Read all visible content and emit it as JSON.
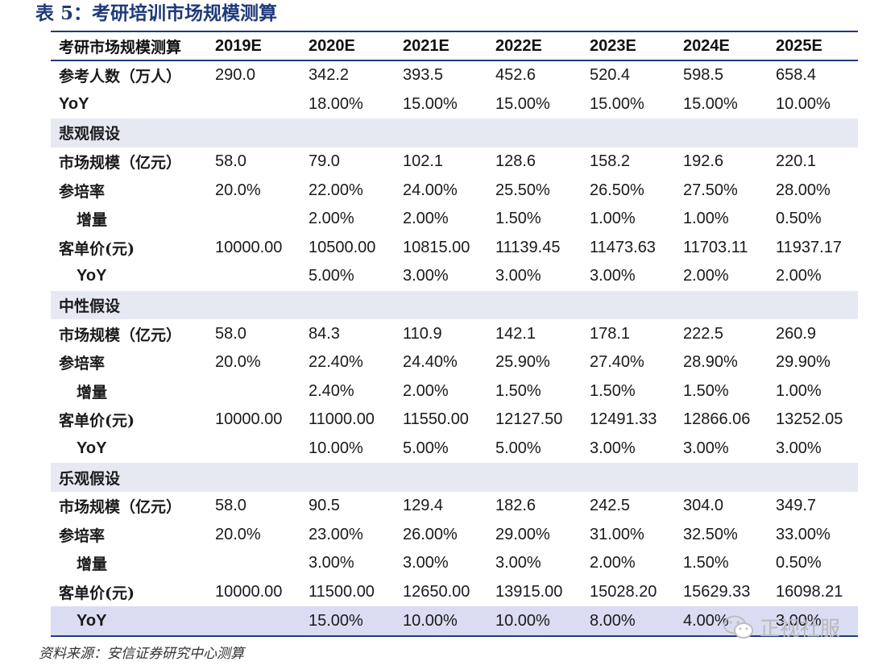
{
  "title": "表 5：考研培训市场规模测算",
  "source": "资料来源：安信证券研究中心测算",
  "watermark": "正视社服",
  "colors": {
    "accent": "#1f3a7a",
    "section_bg": "#e6e9f2",
    "last_row_bg": "#d9dcf2"
  },
  "table": {
    "header": [
      "考研市场规模测算",
      "2019E",
      "2020E",
      "2021E",
      "2022E",
      "2023E",
      "2024E",
      "2025E"
    ],
    "rows": [
      {
        "type": "data",
        "label": "参考人数（万人）",
        "label_style": "cn",
        "values": [
          "290.0",
          "342.2",
          "393.5",
          "452.6",
          "520.4",
          "598.5",
          "658.4"
        ]
      },
      {
        "type": "data",
        "label": "YoY",
        "label_style": "en",
        "values": [
          "",
          "18.00%",
          "15.00%",
          "15.00%",
          "15.00%",
          "15.00%",
          "10.00%"
        ]
      },
      {
        "type": "section",
        "label": "悲观假设"
      },
      {
        "type": "data",
        "label": "市场规模（亿元）",
        "label_style": "cn",
        "values": [
          "58.0",
          "79.0",
          "102.1",
          "128.6",
          "158.2",
          "192.6",
          "220.1"
        ]
      },
      {
        "type": "data",
        "label": "参培率",
        "label_style": "cn",
        "values": [
          "20.0%",
          "22.00%",
          "24.00%",
          "25.50%",
          "26.50%",
          "27.50%",
          "28.00%"
        ]
      },
      {
        "type": "data",
        "label": "增量",
        "label_style": "cn-indent",
        "values": [
          "",
          "2.00%",
          "2.00%",
          "1.50%",
          "1.00%",
          "1.00%",
          "0.50%"
        ]
      },
      {
        "type": "data",
        "label": "客单价(元)",
        "label_style": "cn",
        "values": [
          "10000.00",
          "10500.00",
          "10815.00",
          "11139.45",
          "11473.63",
          "11703.11",
          "11937.17"
        ]
      },
      {
        "type": "data",
        "label": "YoY",
        "label_style": "en-indent",
        "values": [
          "",
          "5.00%",
          "3.00%",
          "3.00%",
          "3.00%",
          "2.00%",
          "2.00%"
        ]
      },
      {
        "type": "section",
        "label": "中性假设"
      },
      {
        "type": "data",
        "label": "市场规模（亿元）",
        "label_style": "cn",
        "values": [
          "58.0",
          "84.3",
          "110.9",
          "142.1",
          "178.1",
          "222.5",
          "260.9"
        ]
      },
      {
        "type": "data",
        "label": "参培率",
        "label_style": "cn",
        "values": [
          "20.0%",
          "22.40%",
          "24.40%",
          "25.90%",
          "27.40%",
          "28.90%",
          "29.90%"
        ]
      },
      {
        "type": "data",
        "label": "增量",
        "label_style": "cn-indent",
        "values": [
          "",
          "2.40%",
          "2.00%",
          "1.50%",
          "1.50%",
          "1.50%",
          "1.00%"
        ]
      },
      {
        "type": "data",
        "label": "客单价(元)",
        "label_style": "cn",
        "values": [
          "10000.00",
          "11000.00",
          "11550.00",
          "12127.50",
          "12491.33",
          "12866.06",
          "13252.05"
        ]
      },
      {
        "type": "data",
        "label": "YoY",
        "label_style": "en-indent",
        "values": [
          "",
          "10.00%",
          "5.00%",
          "5.00%",
          "3.00%",
          "3.00%",
          "3.00%"
        ]
      },
      {
        "type": "section",
        "label": "乐观假设"
      },
      {
        "type": "data",
        "label": "市场规模（亿元）",
        "label_style": "cn",
        "values": [
          "58.0",
          "90.5",
          "129.4",
          "182.6",
          "242.5",
          "304.0",
          "349.7"
        ]
      },
      {
        "type": "data",
        "label": "参培率",
        "label_style": "cn",
        "values": [
          "20.0%",
          "23.00%",
          "26.00%",
          "29.00%",
          "31.00%",
          "32.50%",
          "33.00%"
        ]
      },
      {
        "type": "data",
        "label": "增量",
        "label_style": "cn-indent",
        "values": [
          "",
          "3.00%",
          "3.00%",
          "3.00%",
          "2.00%",
          "1.50%",
          "0.50%"
        ]
      },
      {
        "type": "data",
        "label": "客单价(元)",
        "label_style": "cn",
        "values": [
          "10000.00",
          "11500.00",
          "12650.00",
          "13915.00",
          "15028.20",
          "15629.33",
          "16098.21"
        ]
      },
      {
        "type": "data",
        "label": "YoY",
        "label_style": "en-indent",
        "highlight": true,
        "values": [
          "",
          "15.00%",
          "10.00%",
          "10.00%",
          "8.00%",
          "4.00%",
          "3.00%"
        ]
      }
    ]
  }
}
